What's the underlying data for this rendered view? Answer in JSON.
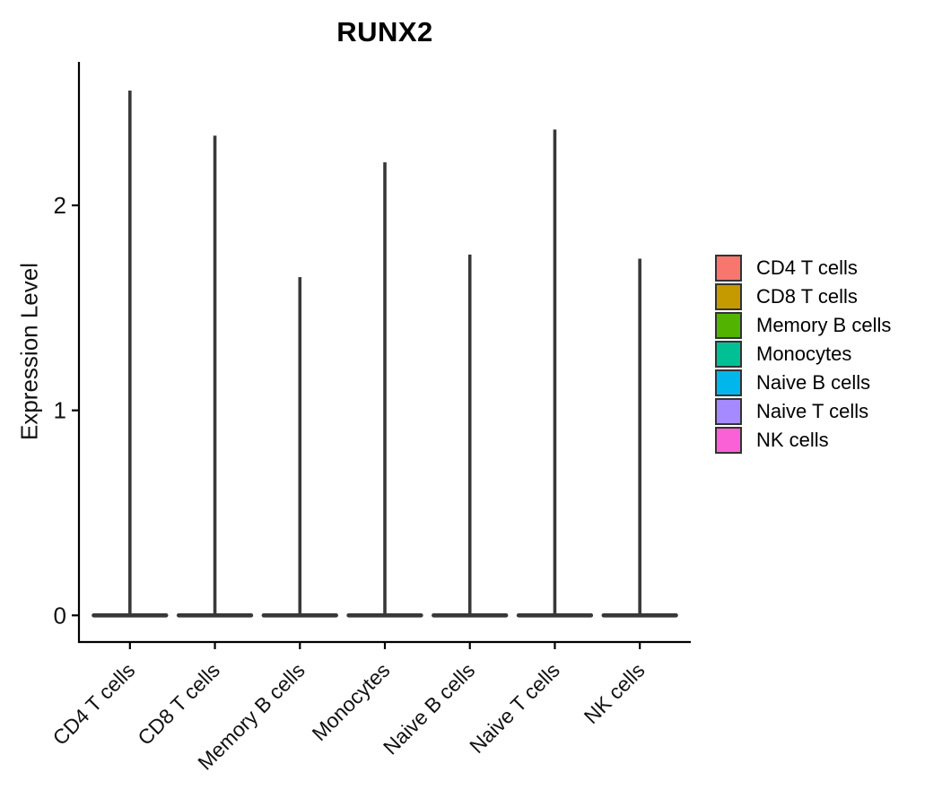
{
  "chart_data": {
    "type": "violin",
    "title": "RUNX2",
    "xlabel": "",
    "ylabel": "Expression Level",
    "categories": [
      "CD4 T cells",
      "CD8 T cells",
      "Memory B cells",
      "Monocytes",
      "Naive B cells",
      "Naive T cells",
      "NK cells"
    ],
    "violins": {
      "note": "density mass concentrated at 0 with thin spike to max expression",
      "mode_value": 0,
      "max_values": [
        2.56,
        2.34,
        1.65,
        2.21,
        1.76,
        2.37,
        1.74
      ]
    },
    "y_ticks": [
      0,
      1,
      2
    ],
    "ylim": [
      -0.13,
      2.7
    ],
    "grid": false,
    "legend_position": "right",
    "legend": [
      {
        "label": "CD4 T cells",
        "color": "#F8766D"
      },
      {
        "label": "CD8 T cells",
        "color": "#C49A00"
      },
      {
        "label": "Memory B cells",
        "color": "#53B400"
      },
      {
        "label": "Monocytes",
        "color": "#00C094"
      },
      {
        "label": "Naive B cells",
        "color": "#00B6EB"
      },
      {
        "label": "Naive T cells",
        "color": "#A58AFF"
      },
      {
        "label": "NK cells",
        "color": "#FB61D7"
      }
    ],
    "colors": {
      "violin_outline": "#383838",
      "axis_line": "#000000",
      "text": "#111111"
    }
  }
}
